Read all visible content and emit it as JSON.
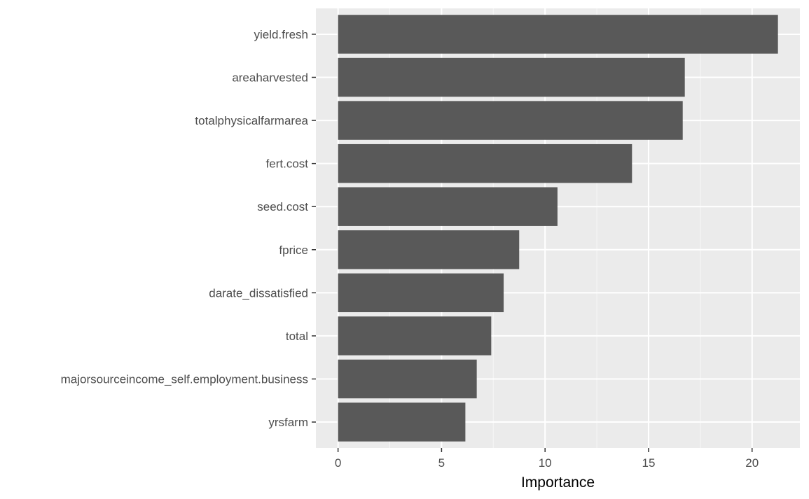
{
  "chart_data": {
    "type": "bar",
    "orientation": "horizontal",
    "categories": [
      "yield.fresh",
      "areaharvested",
      "totalphysicalfarmarea",
      "fert.cost",
      "seed.cost",
      "fprice",
      "darate_dissatisfied",
      "total",
      "majorsourceincome_self.employment.business",
      "yrsfarm"
    ],
    "values": [
      21.25,
      16.75,
      16.65,
      14.2,
      10.6,
      8.75,
      8.0,
      7.4,
      6.7,
      6.15
    ],
    "title": "",
    "xlabel": "Importance",
    "ylabel": "",
    "xlim": [
      -1.07,
      22.31
    ],
    "xticks": [
      0,
      5,
      10,
      15,
      20
    ],
    "grid": true,
    "legend": "none",
    "colors": {
      "bar": "#595959",
      "panel": "#ebebeb",
      "grid_major": "#ffffff",
      "tick_text": "#4d4d4d",
      "tick_mark": "#333333",
      "axis_title": "#000000"
    }
  }
}
